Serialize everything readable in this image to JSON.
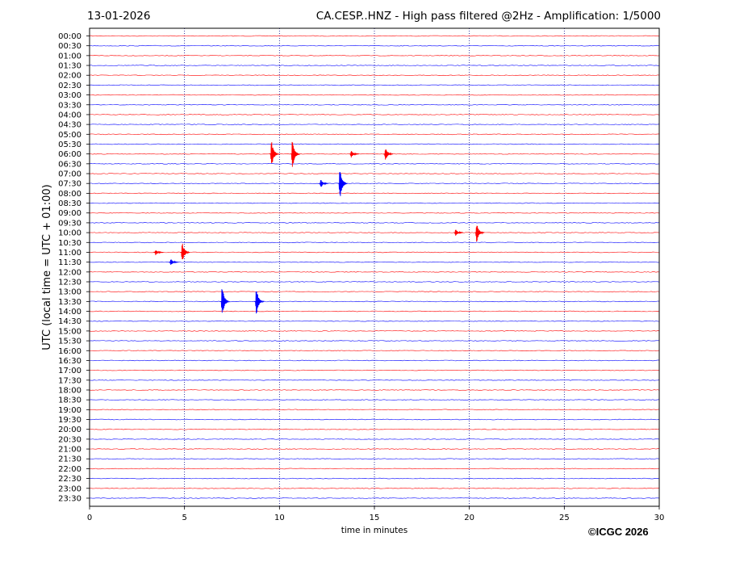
{
  "header": {
    "date": "13-01-2026",
    "title": "CA.CESP..HNZ - High pass filtered @2Hz - Amplification: 1/5000"
  },
  "copyright": "©ICGC 2026",
  "chart_data": {
    "type": "line",
    "xlabel": "time in minutes",
    "ylabel": "UTC (local time = UTC + 01:00)",
    "xlim": [
      0,
      30
    ],
    "x_ticks": [
      0,
      5,
      10,
      15,
      20,
      25,
      30
    ],
    "grid": "vertical dotted lines at x ticks",
    "colors": {
      "odd_traces": "#ff0000",
      "even_traces": "#0000ff",
      "grid": "#00008b"
    },
    "rows": [
      "00:00",
      "00:30",
      "01:00",
      "01:30",
      "02:00",
      "02:30",
      "03:00",
      "03:30",
      "04:00",
      "04:30",
      "05:00",
      "05:30",
      "06:00",
      "06:30",
      "07:00",
      "07:30",
      "08:00",
      "08:30",
      "09:00",
      "09:30",
      "10:00",
      "10:30",
      "11:00",
      "11:30",
      "12:00",
      "12:30",
      "13:00",
      "13:30",
      "14:00",
      "14:30",
      "15:00",
      "15:30",
      "16:00",
      "16:30",
      "17:00",
      "17:30",
      "18:00",
      "18:30",
      "19:00",
      "19:30",
      "20:00",
      "20:30",
      "21:00",
      "21:30",
      "22:00",
      "22:30",
      "23:00",
      "23:30"
    ],
    "events": [
      {
        "row": "06:00",
        "minute": 9.6,
        "amplitude": 1.0
      },
      {
        "row": "06:00",
        "minute": 10.7,
        "amplitude": 1.1
      },
      {
        "row": "06:00",
        "minute": 13.8,
        "amplitude": 0.25
      },
      {
        "row": "06:00",
        "minute": 15.6,
        "amplitude": 0.5
      },
      {
        "row": "07:30",
        "minute": 12.2,
        "amplitude": 0.3
      },
      {
        "row": "07:30",
        "minute": 13.2,
        "amplitude": 1.2
      },
      {
        "row": "10:00",
        "minute": 19.3,
        "amplitude": 0.25
      },
      {
        "row": "10:00",
        "minute": 20.4,
        "amplitude": 0.75
      },
      {
        "row": "11:00",
        "minute": 3.5,
        "amplitude": 0.2
      },
      {
        "row": "11:00",
        "minute": 4.9,
        "amplitude": 0.75
      },
      {
        "row": "11:30",
        "minute": 4.3,
        "amplitude": 0.25
      },
      {
        "row": "13:30",
        "minute": 7.0,
        "amplitude": 1.1
      },
      {
        "row": "13:30",
        "minute": 8.8,
        "amplitude": 1.0
      }
    ]
  }
}
